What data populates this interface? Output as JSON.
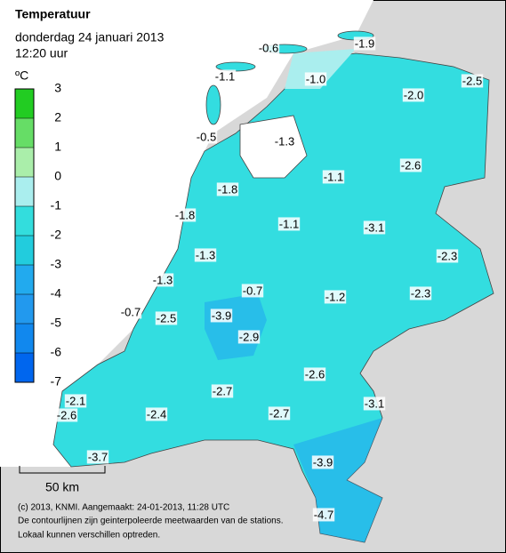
{
  "header": {
    "title": "Temperatuur",
    "date": "donderdag 24 januari 2013",
    "time": "12:20 uur"
  },
  "legend": {
    "unit": "ºC",
    "ticks": [
      3,
      2,
      1,
      0,
      -1,
      -2,
      -3,
      -4,
      -5,
      -6,
      -7
    ],
    "colors": [
      "#22cc22",
      "#66dd66",
      "#aaeeaa",
      "#aaeeee",
      "#33dddd",
      "#22ccdd",
      "#22aaee",
      "#2299ee",
      "#1188ee",
      "#0066ee"
    ]
  },
  "stations": [
    "-0.6",
    "-1.9",
    "-1.1",
    "-1.0",
    "-2.5",
    "-2.0",
    "-0.5",
    "-1.3",
    "-2.6",
    "-1.1",
    "-1.8",
    "-1.8",
    "-1.1",
    "-3.1",
    "-2.3",
    "-1.3",
    "-1.3",
    "-0.7",
    "-2.3",
    "-1.2",
    "-0.7",
    "-2.5",
    "-3.9",
    "-2.9",
    "-2.6",
    "-2.7",
    "-3.1",
    "-2.1",
    "-2.4",
    "-2.7",
    "-2.6",
    "-3.7",
    "-3.9",
    "-4.7"
  ],
  "scale_bar": "50 km",
  "footer": [
    "(c) 2013, KNMI. Aangemaakt: 24-01-2013, 11:28 UTC",
    "De contourlijnen zijn geinterpoleerde meetwaarden van de stations.",
    "Lokaal kunnen verschillen optreden."
  ]
}
